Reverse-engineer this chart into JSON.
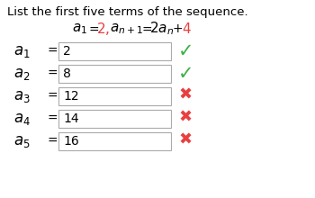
{
  "title": "List the first five terms of the sequence.",
  "term_subs": [
    "1",
    "2",
    "3",
    "4",
    "5"
  ],
  "values": [
    "2",
    "8",
    "12",
    "14",
    "16"
  ],
  "correct": [
    true,
    true,
    false,
    false,
    false
  ],
  "check_color_correct": "#3cb043",
  "check_color_wrong": "#e84040",
  "red_color": "#e84040",
  "box_edge_color": "#aaaaaa",
  "bg_color": "#ffffff",
  "title_fontsize": 9.5,
  "formula_fontsize": 10,
  "term_fontsize": 10,
  "value_fontsize": 10
}
